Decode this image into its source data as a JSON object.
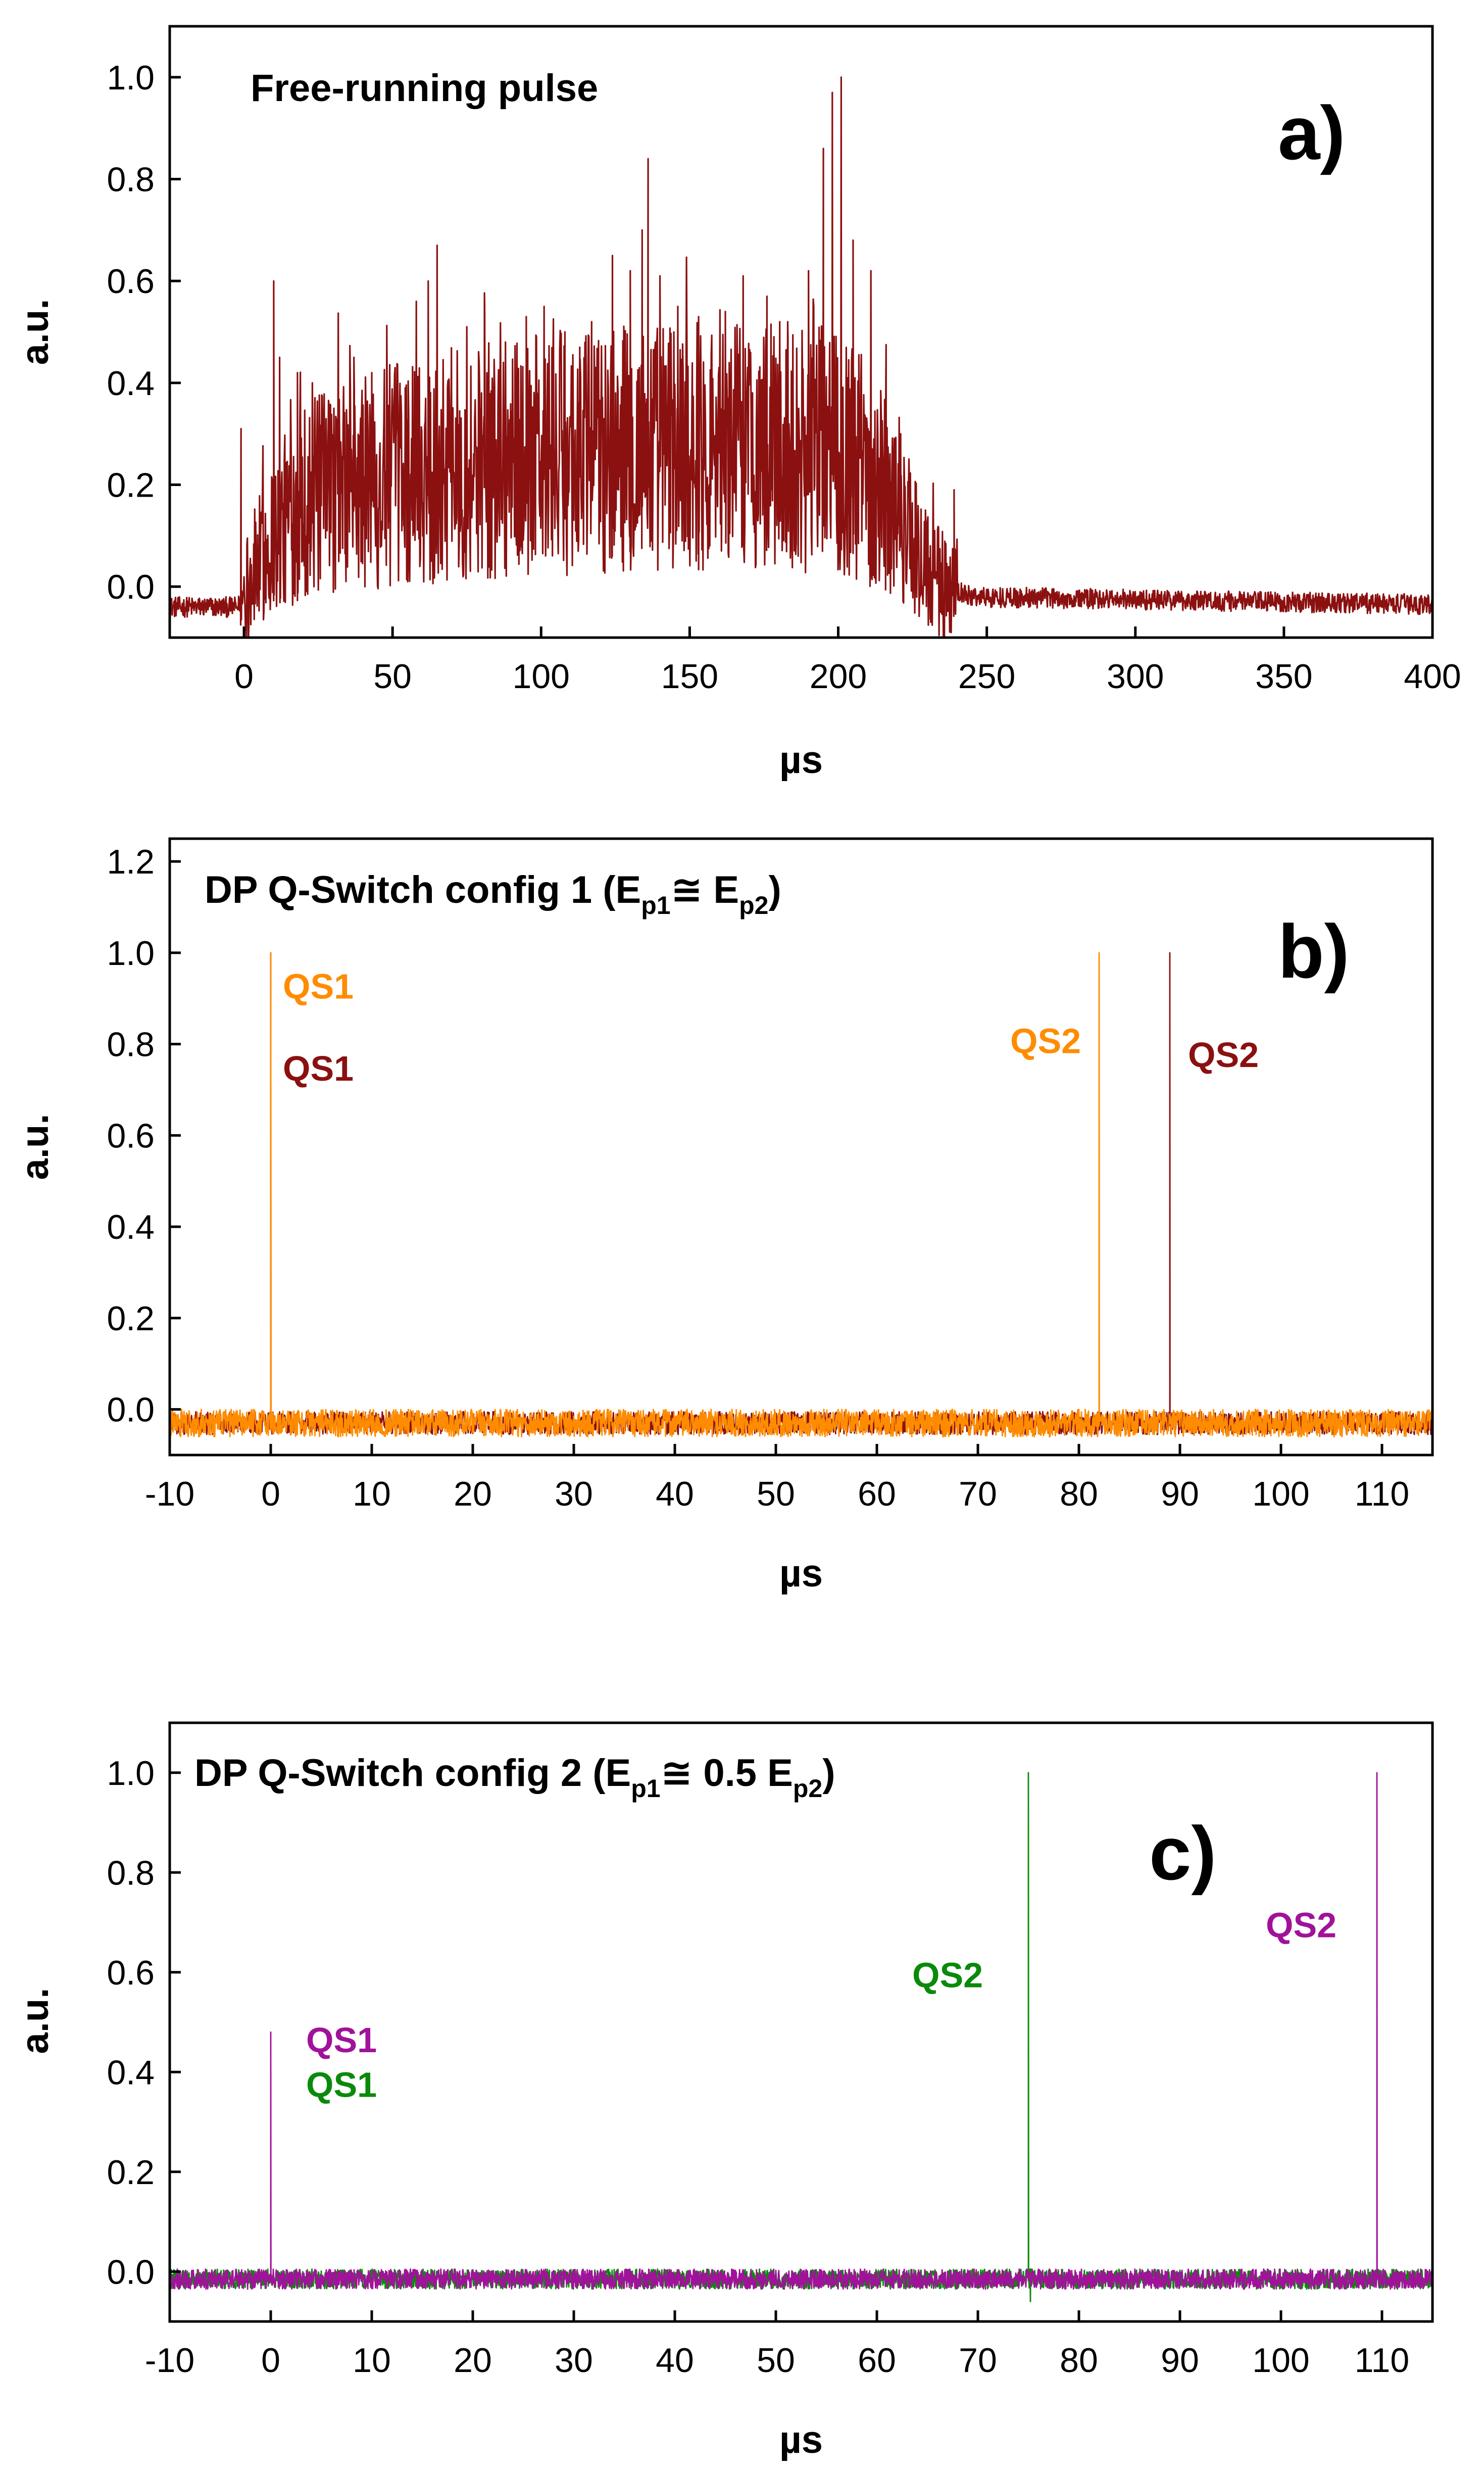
{
  "chart_data": [
    {
      "type": "line",
      "panel_label": "a)",
      "title": "Free-running pulse",
      "xlabel": "µs",
      "ylabel": "a.u.",
      "xlim": [
        -25,
        400
      ],
      "ylim": [
        -0.1,
        1.1
      ],
      "xticks": [
        0,
        50,
        100,
        150,
        200,
        250,
        300,
        350,
        400
      ],
      "yticks": [
        0.0,
        0.2,
        0.4,
        0.6,
        0.8,
        1.0
      ],
      "ytick_decimals": 1,
      "grid": false,
      "series": [
        {
          "color": "#8B1010",
          "kind": "free-running",
          "envelope": [
            [
              -25,
              -0.04
            ],
            [
              -2,
              -0.04
            ],
            [
              0,
              -0.01
            ],
            [
              10,
              0.1
            ],
            [
              20,
              0.17
            ],
            [
              50,
              0.22
            ],
            [
              100,
              0.26
            ],
            [
              150,
              0.28
            ],
            [
              200,
              0.27
            ],
            [
              215,
              0.2
            ],
            [
              225,
              0.08
            ],
            [
              235,
              0.0
            ],
            [
              245,
              -0.02
            ],
            [
              400,
              -0.035
            ]
          ],
          "spikes": [
            [
              -1,
              0.31
            ],
            [
              10,
              0.6
            ],
            [
              12,
              0.45
            ],
            [
              18,
              0.42
            ],
            [
              23,
              0.4
            ],
            [
              37,
              0.45
            ],
            [
              43,
              0.42
            ],
            [
              58,
              0.56
            ],
            [
              62,
              0.6
            ],
            [
              65,
              0.67
            ],
            [
              75,
              0.51
            ],
            [
              81,
              0.55
            ],
            [
              88,
              0.48
            ],
            [
              95,
              0.53
            ],
            [
              101,
              0.55
            ],
            [
              108,
              0.5
            ],
            [
              113,
              0.47
            ],
            [
              117,
              0.52
            ],
            [
              124,
              0.65
            ],
            [
              130,
              0.62
            ],
            [
              134,
              0.7
            ],
            [
              136,
              0.84
            ],
            [
              140,
              0.61
            ],
            [
              146,
              0.55
            ],
            [
              153,
              0.53
            ],
            [
              162,
              0.54
            ],
            [
              168,
              0.61
            ],
            [
              176,
              0.57
            ],
            [
              183,
              0.52
            ],
            [
              190,
              0.62
            ],
            [
              195,
              0.86
            ],
            [
              198,
              0.97
            ],
            [
              201,
              1.0
            ],
            [
              205,
              0.68
            ],
            [
              211,
              0.62
            ],
            [
              216,
              0.36
            ],
            [
              221,
              0.3
            ],
            [
              226,
              0.17
            ],
            [
              231,
              0.08
            ],
            [
              239,
              0.19
            ]
          ]
        }
      ]
    },
    {
      "type": "line",
      "panel_label": "b)",
      "title": "DP Q-Switch config 1 (E",
      "title_sub1": "p1",
      "title_mid": "≅ E",
      "title_sub2": "p2",
      "title_end": ")",
      "xlabel": "µs",
      "ylabel": "a.u.",
      "xlim": [
        -10,
        115
      ],
      "ylim": [
        -0.1,
        1.25
      ],
      "xticks": [
        -10,
        0,
        10,
        20,
        30,
        40,
        50,
        60,
        70,
        80,
        90,
        100,
        110
      ],
      "yticks": [
        0.0,
        0.2,
        0.4,
        0.6,
        0.8,
        1.0,
        1.2
      ],
      "ytick_decimals": 1,
      "grid": false,
      "series": [
        {
          "color": "#8B1010",
          "baseline": -0.03,
          "noise": 0.025,
          "peaks": [
            [
              0,
              1.0
            ],
            [
              89,
              1.0
            ]
          ]
        },
        {
          "color": "#FF8C00",
          "baseline": -0.03,
          "noise": 0.03,
          "peaks": [
            [
              0,
              1.0
            ],
            [
              82,
              1.0
            ]
          ]
        }
      ],
      "annotations": [
        {
          "text": "QS1",
          "x": 1.2,
          "y": 0.9,
          "color": "#FF8C00"
        },
        {
          "text": "QS1",
          "x": 1.2,
          "y": 0.72,
          "color": "#8B1010"
        },
        {
          "text": "QS2",
          "x": 73.2,
          "y": 0.78,
          "color": "#FF8C00"
        },
        {
          "text": "QS2",
          "x": 90.8,
          "y": 0.75,
          "color": "#8B1010"
        }
      ]
    },
    {
      "type": "line",
      "panel_label": "c)",
      "title": "DP Q-Switch config 2 (E",
      "title_sub1": "p1",
      "title_mid": "≅ 0.5 E",
      "title_sub2": "p2",
      "title_end": ")",
      "xlabel": "µs",
      "ylabel": "a.u.",
      "xlim": [
        -10,
        115
      ],
      "ylim": [
        -0.1,
        1.1
      ],
      "xticks": [
        -10,
        0,
        10,
        20,
        30,
        40,
        50,
        60,
        70,
        80,
        90,
        100,
        110
      ],
      "yticks": [
        0.0,
        0.2,
        0.4,
        0.6,
        0.8,
        1.0
      ],
      "ytick_decimals": 1,
      "grid": false,
      "series": [
        {
          "color": "#0A8A0A",
          "baseline": -0.015,
          "noise": 0.02,
          "peaks": [
            [
              75,
              1.0
            ],
            [
              75.2,
              -0.06
            ]
          ]
        },
        {
          "color": "#A0129A",
          "baseline": -0.015,
          "noise": 0.02,
          "peaks": [
            [
              0,
              0.48
            ],
            [
              109.5,
              1.0
            ]
          ]
        }
      ],
      "annotations": [
        {
          "text": "QS1",
          "x": 3.5,
          "y": 0.44,
          "color": "#A0129A"
        },
        {
          "text": "QS1",
          "x": 3.5,
          "y": 0.35,
          "color": "#0A8A0A"
        },
        {
          "text": "QS2",
          "x": 63.5,
          "y": 0.57,
          "color": "#0A8A0A"
        },
        {
          "text": "QS2",
          "x": 98.5,
          "y": 0.67,
          "color": "#A0129A"
        }
      ]
    }
  ]
}
